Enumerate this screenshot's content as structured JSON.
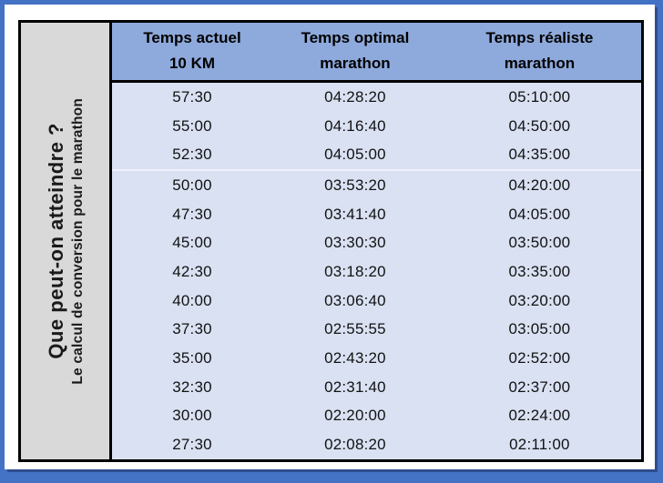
{
  "sidebar": {
    "title": "Que peut-on atteindre ?",
    "subtitle": "Le calcul de conversion pour le marathon"
  },
  "colors": {
    "frame_blue": "#4472C4",
    "frame_dark_edge": "#2F4E8E",
    "header_blue": "#8EA9DB",
    "body_blue": "#D9E1F2",
    "sidebar_gray": "#D9D9D9",
    "separator_line": "#EEF1F9",
    "table_border": "#000000"
  },
  "chart_data": {
    "type": "table",
    "title": "Que peut-on atteindre ? - Le calcul de conversion pour le marathon",
    "columns": [
      {
        "line1": "Temps actuel",
        "line2": "10 KM"
      },
      {
        "line1": "Temps optimal",
        "line2": "marathon"
      },
      {
        "line1": "Temps réaliste",
        "line2": "marathon"
      }
    ],
    "rows": [
      [
        "57:30",
        "04:28:20",
        "05:10:00"
      ],
      [
        "55:00",
        "04:16:40",
        "04:50:00"
      ],
      [
        "52:30",
        "04:05:00",
        "04:35:00"
      ],
      [
        "50:00",
        "03:53:20",
        "04:20:00"
      ],
      [
        "47:30",
        "03:41:40",
        "04:05:00"
      ],
      [
        "45:00",
        "03:30:30",
        "03:50:00"
      ],
      [
        "42:30",
        "03:18:20",
        "03:35:00"
      ],
      [
        "40:00",
        "03:06:40",
        "03:20:00"
      ],
      [
        "37:30",
        "02:55:55",
        "03:05:00"
      ],
      [
        "35:00",
        "02:43:20",
        "02:52:00"
      ],
      [
        "32:30",
        "02:31:40",
        "02:37:00"
      ],
      [
        "30:00",
        "02:20:00",
        "02:24:00"
      ],
      [
        "27:30",
        "02:08:20",
        "02:11:00"
      ]
    ],
    "separator_before_row_index": 3,
    "layout": {
      "grid": "off",
      "header_position": "top",
      "sidebar_position": "left-vertical"
    }
  }
}
